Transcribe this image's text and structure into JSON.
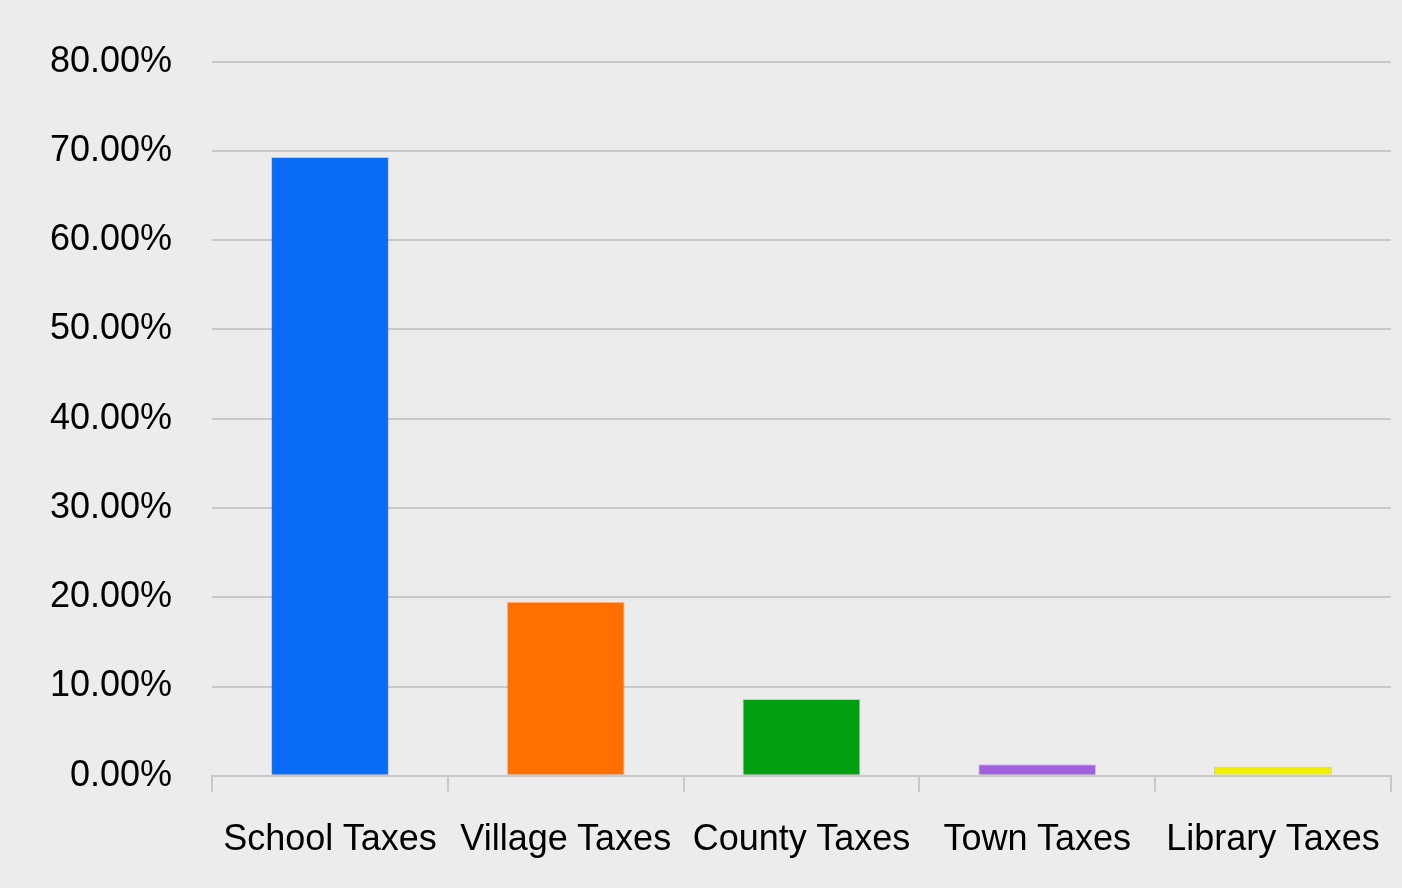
{
  "chart_data": {
    "type": "bar",
    "categories": [
      "School Taxes",
      "Village Taxes",
      "County Taxes",
      "Town Taxes",
      "Library Taxes"
    ],
    "values": [
      69.3,
      19.5,
      8.6,
      1.3,
      1.0
    ],
    "colors": [
      "#0a6cf5",
      "#ff7000",
      "#00a010",
      "#a060e0",
      "#f0f000"
    ],
    "ylim": [
      0,
      80
    ],
    "yticks": [
      {
        "value": 0,
        "label": "0.00%"
      },
      {
        "value": 10,
        "label": "10.00%"
      },
      {
        "value": 20,
        "label": "20.00%"
      },
      {
        "value": 30,
        "label": "30.00%"
      },
      {
        "value": 40,
        "label": "40.00%"
      },
      {
        "value": 50,
        "label": "50.00%"
      },
      {
        "value": 60,
        "label": "60.00%"
      },
      {
        "value": 70,
        "label": "70.00%"
      },
      {
        "value": 80,
        "label": "80.00%"
      }
    ],
    "grid": "y"
  }
}
